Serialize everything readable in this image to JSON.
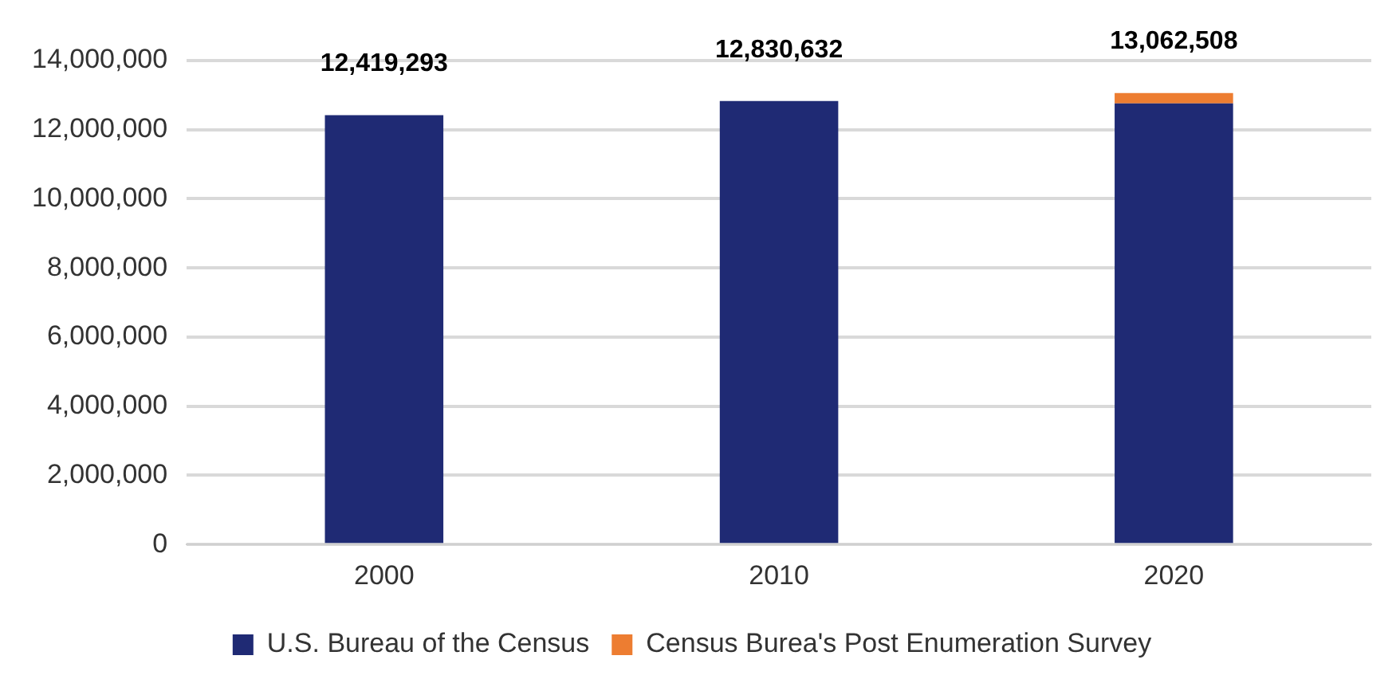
{
  "chart_data": {
    "type": "bar",
    "categories": [
      "2000",
      "2010",
      "2020"
    ],
    "stacked": true,
    "series": [
      {
        "name": "U.S. Bureau of the Census",
        "color": "#1f2a74",
        "values": [
          12419293,
          12830632,
          12762508
        ]
      },
      {
        "name": "Census Burea's Post Enumeration Survey",
        "color": "#ed7d31",
        "values": [
          null,
          null,
          300000
        ]
      }
    ],
    "totals": [
      "12,419,293",
      "12,830,632",
      "13,062,508"
    ],
    "ylim": [
      0,
      14000000
    ],
    "yticks": [
      {
        "value": 0,
        "label": "0"
      },
      {
        "value": 2000000,
        "label": "2,000,000"
      },
      {
        "value": 4000000,
        "label": "4,000,000"
      },
      {
        "value": 6000000,
        "label": "6,000,000"
      },
      {
        "value": 8000000,
        "label": "8,000,000"
      },
      {
        "value": 10000000,
        "label": "10,000,000"
      },
      {
        "value": 12000000,
        "label": "12,000,000"
      },
      {
        "value": 14000000,
        "label": "14,000,000"
      }
    ],
    "grid": "y",
    "legend": "bottom"
  }
}
